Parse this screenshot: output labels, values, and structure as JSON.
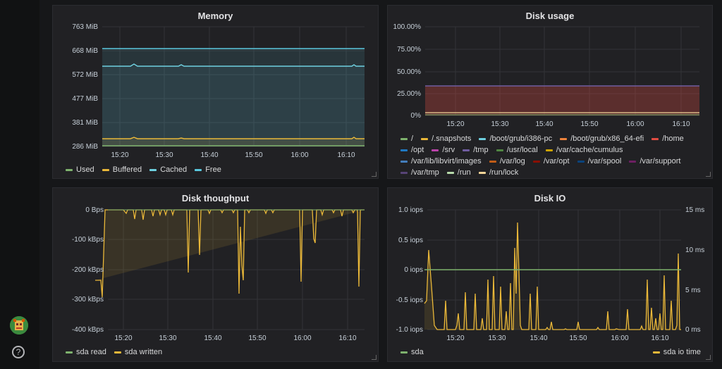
{
  "panels": {
    "memory": {
      "title": "Memory",
      "y_ticks": [
        "763 MiB",
        "668 MiB",
        "572 MiB",
        "477 MiB",
        "381 MiB",
        "286 MiB"
      ],
      "x_ticks": [
        "15:20",
        "15:30",
        "15:40",
        "15:50",
        "16:00",
        "16:10"
      ],
      "legend": [
        {
          "label": "Used",
          "color": "#7eb26d"
        },
        {
          "label": "Buffered",
          "color": "#eab839"
        },
        {
          "label": "Cached",
          "color": "#6ed0e0"
        },
        {
          "label": "Free",
          "color": "#5ac8de"
        }
      ]
    },
    "disk_usage": {
      "title": "Disk usage",
      "y_ticks": [
        "100.00%",
        "75.00%",
        "50.00%",
        "25.00%",
        "0%"
      ],
      "x_ticks": [
        "15:20",
        "15:30",
        "15:40",
        "15:50",
        "16:00",
        "16:10"
      ],
      "legend": [
        {
          "label": "/",
          "color": "#7eb26d"
        },
        {
          "label": "/.snapshots",
          "color": "#eab839"
        },
        {
          "label": "/boot/grub/i386-pc",
          "color": "#6ed0e0"
        },
        {
          "label": "/boot/grub/x86_64-efi",
          "color": "#ef843c"
        },
        {
          "label": "/home",
          "color": "#e24d42"
        },
        {
          "label": "/opt",
          "color": "#1f78c1"
        },
        {
          "label": "/srv",
          "color": "#ba43a9"
        },
        {
          "label": "/tmp",
          "color": "#705da0"
        },
        {
          "label": "/usr/local",
          "color": "#508642"
        },
        {
          "label": "/var/cache/cumulus",
          "color": "#cca300"
        },
        {
          "label": "/var/lib/libvirt/images",
          "color": "#447ebc"
        },
        {
          "label": "/var/log",
          "color": "#c15c17"
        },
        {
          "label": "/var/opt",
          "color": "#890f02"
        },
        {
          "label": "/var/spool",
          "color": "#0a437c"
        },
        {
          "label": "/var/support",
          "color": "#6d1f62"
        },
        {
          "label": "/var/tmp",
          "color": "#584477"
        },
        {
          "label": "/run",
          "color": "#b7dbab"
        },
        {
          "label": "/run/lock",
          "color": "#f4d598"
        }
      ]
    },
    "disk_throughput": {
      "title": "Disk thoughput",
      "y_ticks": [
        "0 Bps",
        "-100 kBps",
        "-200 kBps",
        "-300 kBps",
        "-400 kBps"
      ],
      "x_ticks": [
        "15:20",
        "15:30",
        "15:40",
        "15:50",
        "16:00",
        "16:10"
      ],
      "legend": [
        {
          "label": "sda read",
          "color": "#7eb26d"
        },
        {
          "label": "sda written",
          "color": "#eab839"
        }
      ]
    },
    "disk_io": {
      "title": "Disk IO",
      "y_ticks": [
        "1.0 iops",
        "0.5 iops",
        "0 iops",
        "-0.5 iops",
        "-1.0 iops"
      ],
      "y2_ticks": [
        "15 ms",
        "10 ms",
        "5 ms",
        "0 ms"
      ],
      "x_ticks": [
        "15:20",
        "15:30",
        "15:40",
        "15:50",
        "16:00",
        "16:10"
      ],
      "legend_left": {
        "label": "sda",
        "color": "#7eb26d"
      },
      "legend_right": {
        "label": "sda io time",
        "color": "#eab839"
      }
    }
  },
  "colors": {
    "used": "#7eb26d",
    "buffered": "#eab839",
    "cached": "#6ed0e0",
    "free": "#5ac8de",
    "disk_fill": "#e24d42"
  }
}
